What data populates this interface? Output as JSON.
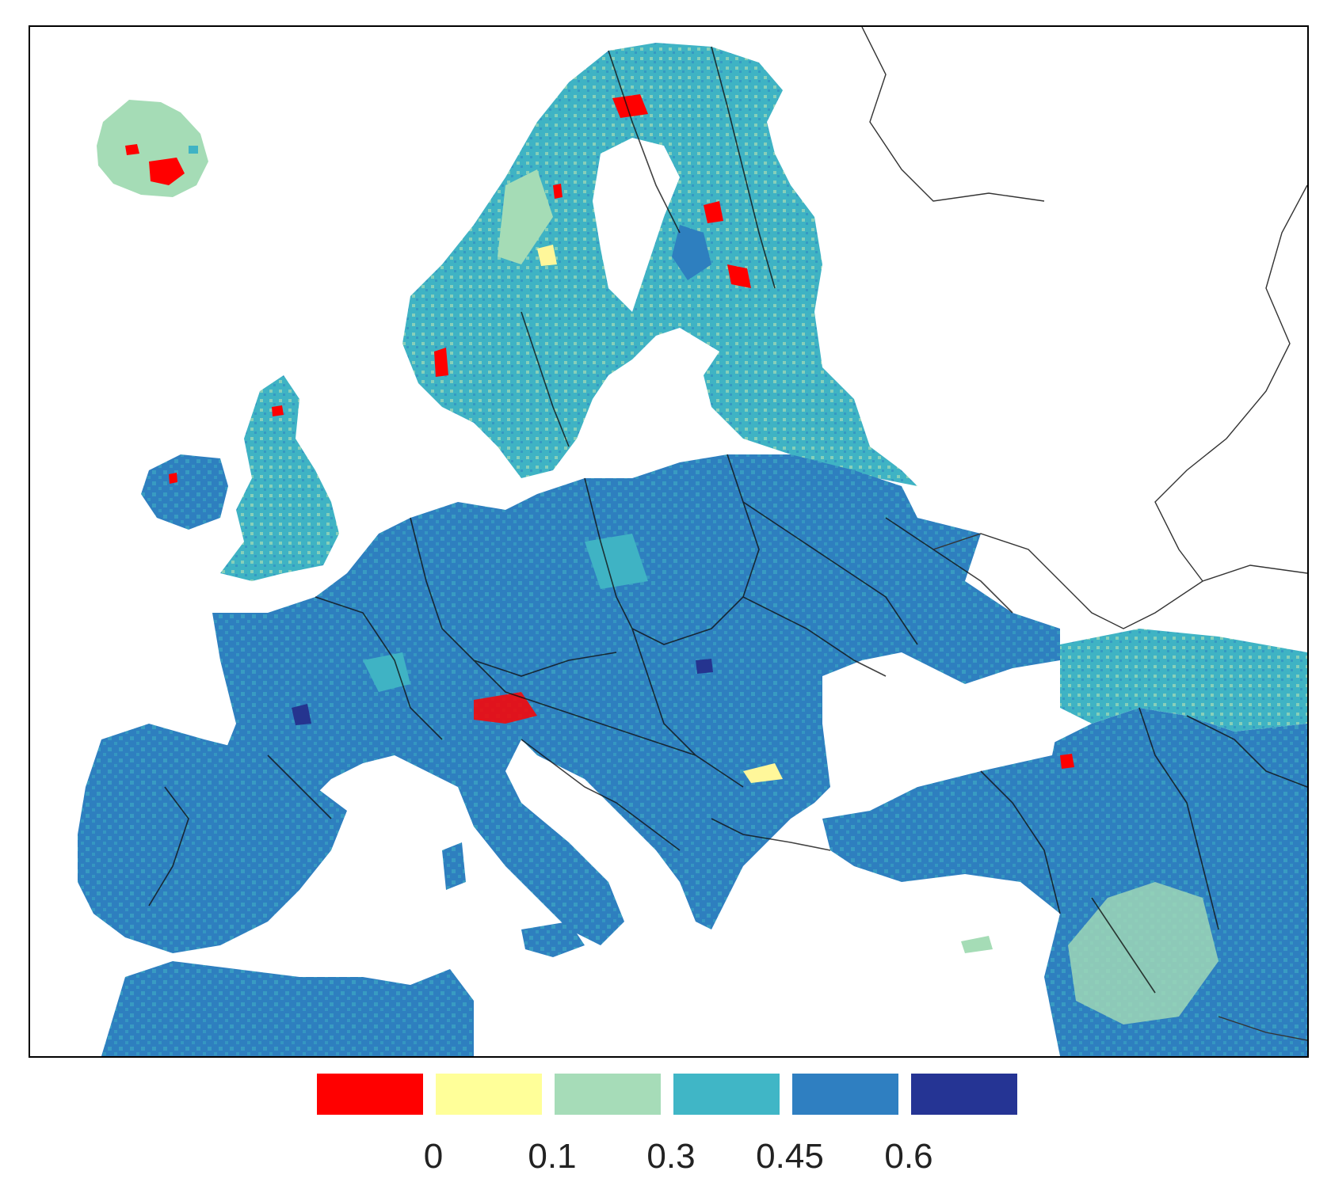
{
  "map": {
    "colors": {
      "water": "#ffffff",
      "border": "#111111",
      "land_default": "#2e7fbf",
      "land_light": "#3fb3c4",
      "pale": "#a5dcb6",
      "yellow": "#fff79a",
      "red": "#ff0000",
      "dark": "#25348f"
    }
  },
  "legend": {
    "bins": [
      {
        "color": "#ff0000"
      },
      {
        "color": "#ffff99"
      },
      {
        "color": "#a6dcb8"
      },
      {
        "color": "#40b6c6"
      },
      {
        "color": "#2f7fc1"
      },
      {
        "color": "#253494"
      }
    ],
    "tick_labels": [
      "0",
      "0.1",
      "0.3",
      "0.45",
      "0.6"
    ]
  }
}
